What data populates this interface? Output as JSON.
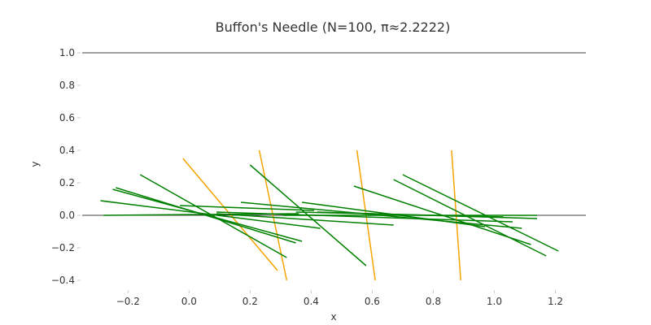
{
  "chart_data": {
    "type": "line",
    "title": "Buffon's Needle (N=100, π≈2.2222)",
    "xlabel": "x",
    "ylabel": "y",
    "xlim": [
      -0.35,
      1.3
    ],
    "ylim": [
      -0.45,
      1.08
    ],
    "x_ticks": [
      "−0.2",
      "0.0",
      "0.2",
      "0.4",
      "0.6",
      "0.8",
      "1.0",
      "1.2"
    ],
    "x_tick_values": [
      -0.2,
      0.0,
      0.2,
      0.4,
      0.6,
      0.8,
      1.0,
      1.2
    ],
    "y_ticks": [
      "−0.4",
      "−0.2",
      "0.0",
      "0.2",
      "0.4",
      "0.6",
      "0.8",
      "1.0"
    ],
    "y_tick_values": [
      -0.4,
      -0.2,
      0.0,
      0.2,
      0.4,
      0.6,
      0.8,
      1.0
    ],
    "grid": false,
    "reference_lines": [
      0.0,
      1.0
    ],
    "colors": {
      "crossing": "#f5a300",
      "non_crossing": "#008000",
      "reference": "#000000"
    },
    "series": [
      {
        "segments": [
          [
            [
              -0.02,
              0.35
            ],
            [
              0.29,
              -0.34
            ]
          ],
          [
            [
              0.23,
              0.4
            ],
            [
              0.32,
              -0.4
            ]
          ],
          [
            [
              0.55,
              0.4
            ],
            [
              0.61,
              -0.4
            ]
          ],
          [
            [
              0.86,
              0.4
            ],
            [
              0.89,
              -0.4
            ]
          ]
        ]
      },
      {
        "segments": [
          [
            [
              -0.28,
              0.0
            ],
            [
              0.36,
              0.01
            ]
          ],
          [
            [
              -0.25,
              0.16
            ],
            [
              0.37,
              -0.16
            ]
          ],
          [
            [
              -0.24,
              0.17
            ],
            [
              0.35,
              -0.17
            ]
          ],
          [
            [
              -0.29,
              0.09
            ],
            [
              0.43,
              -0.08
            ]
          ],
          [
            [
              -0.16,
              0.25
            ],
            [
              0.32,
              -0.26
            ]
          ],
          [
            [
              -0.03,
              0.06
            ],
            [
              0.41,
              0.03
            ]
          ],
          [
            [
              0.09,
              0.01
            ],
            [
              0.67,
              -0.06
            ]
          ],
          [
            [
              0.09,
              0.02
            ],
            [
              1.06,
              -0.04
            ]
          ],
          [
            [
              0.17,
              0.08
            ],
            [
              1.09,
              -0.08
            ]
          ],
          [
            [
              0.2,
              0.31
            ],
            [
              0.58,
              -0.31
            ]
          ],
          [
            [
              0.37,
              0.08
            ],
            [
              0.97,
              -0.07
            ]
          ],
          [
            [
              0.35,
              0.02
            ],
            [
              1.03,
              -0.01
            ]
          ],
          [
            [
              0.31,
              0.0
            ],
            [
              1.14,
              0.0
            ]
          ],
          [
            [
              0.54,
              0.18
            ],
            [
              1.12,
              -0.18
            ]
          ],
          [
            [
              0.67,
              0.22
            ],
            [
              1.17,
              -0.25
            ]
          ],
          [
            [
              0.7,
              0.25
            ],
            [
              1.21,
              -0.22
            ]
          ],
          [
            [
              0.42,
              0.02
            ],
            [
              1.14,
              -0.02
            ]
          ]
        ]
      }
    ]
  }
}
